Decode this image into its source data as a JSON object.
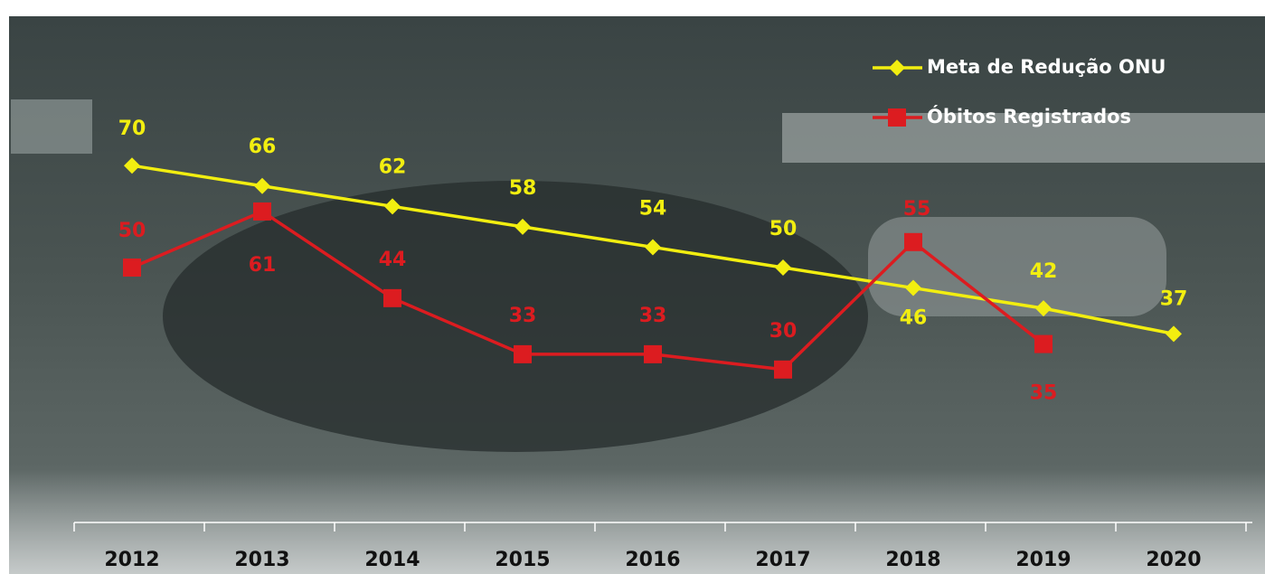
{
  "chart_data": {
    "type": "line",
    "categories": [
      "2012",
      "2013",
      "2014",
      "2015",
      "2016",
      "2017",
      "2018",
      "2019",
      "2020"
    ],
    "series": [
      {
        "name": "Meta de Redução ONU",
        "color": "#f2ee10",
        "marker": "diamond",
        "values": [
          70,
          66,
          62,
          58,
          54,
          50,
          46,
          42,
          37
        ]
      },
      {
        "name": "Óbitos Registrados",
        "color": "#dc1c20",
        "marker": "square",
        "values": [
          50,
          61,
          44,
          33,
          33,
          30,
          55,
          35,
          null
        ]
      }
    ],
    "ylim": [
      0,
      100
    ],
    "grid": false
  }
}
